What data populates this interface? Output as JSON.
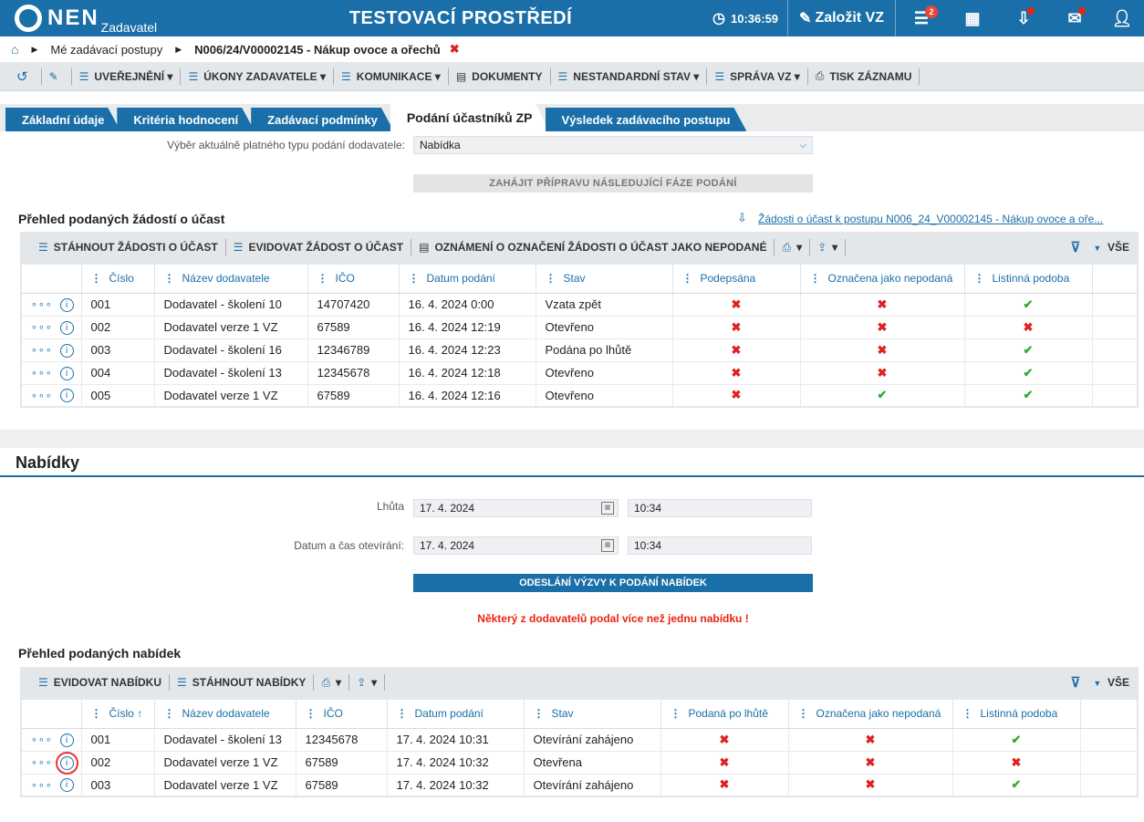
{
  "header": {
    "logo_text": "NEN",
    "logo_sub": "Zadavatel",
    "env_title": "TESTOVACÍ PROSTŘEDÍ",
    "clock": "10:36:59",
    "create_label": "Založit VZ",
    "menu_badge": "2",
    "accent": "#1a6fa8"
  },
  "breadcrumb": {
    "item1": "Mé zadávací postupy",
    "item2": "N006/24/V00002145 - Nákup ovoce a ořechů"
  },
  "toolbar": {
    "uverejneni": "UVEŘEJNĚNÍ",
    "ukony": "ÚKONY ZADAVATELE",
    "komunikace": "KOMUNIKACE",
    "dokumenty": "DOKUMENTY",
    "nestandardni": "NESTANDARDNÍ STAV",
    "sprava": "SPRÁVA VZ",
    "tisk": "TISK ZÁZNAMU"
  },
  "tabs": [
    "Základní údaje",
    "Kritéria hodnocení",
    "Zadávací podmínky",
    "Podání účastníků ZP",
    "Výsledek zadávacího postupu"
  ],
  "section1": {
    "select_label": "Výběr aktuálně platného typu podání dodavatele:",
    "select_value": "Nabídka",
    "next_phase_btn": "ZAHÁJIT PŘÍPRAVU NÁSLEDUJÍCÍ FÁZE PODÁNÍ",
    "grid_title": "Přehled podaných žádostí o účast",
    "download_link": "Žádosti o účast k postupu N006_24_V00002145 - Nákup ovoce a oře...",
    "btn_download": "STÁHNOUT ŽÁDOSTI O ÚČAST",
    "btn_record": "EVIDOVAT ŽÁDOST O ÚČAST",
    "btn_notice": "OZNÁMENÍ O OZNAČENÍ ŽÁDOSTI O ÚČAST JAKO NEPODANÉ",
    "filter_all": "VŠE",
    "columns": [
      "Číslo",
      "Název dodavatele",
      "IČO",
      "Datum podání",
      "Stav",
      "Podepsána",
      "Označena jako nepodaná",
      "Listinná podoba"
    ],
    "rows": [
      {
        "num": "001",
        "name": "Dodavatel - školení 10",
        "ico": "14707420",
        "date": "16. 4. 2024 0:00",
        "state": "Vzata zpět",
        "signed": false,
        "unsubmitted": false,
        "paper": true
      },
      {
        "num": "002",
        "name": "Dodavatel verze 1 VZ",
        "ico": "67589",
        "date": "16. 4. 2024 12:19",
        "state": "Otevřeno",
        "signed": false,
        "unsubmitted": false,
        "paper": false
      },
      {
        "num": "003",
        "name": "Dodavatel - školení 16",
        "ico": "12346789",
        "date": "16. 4. 2024 12:23",
        "state": "Podána po lhůtě",
        "signed": false,
        "unsubmitted": false,
        "paper": true
      },
      {
        "num": "004",
        "name": "Dodavatel - školení 13",
        "ico": "12345678",
        "date": "16. 4. 2024 12:18",
        "state": "Otevřeno",
        "signed": false,
        "unsubmitted": false,
        "paper": true
      },
      {
        "num": "005",
        "name": "Dodavatel verze 1 VZ",
        "ico": "67589",
        "date": "16. 4. 2024 12:16",
        "state": "Otevřeno",
        "signed": false,
        "unsubmitted": true,
        "paper": true
      }
    ]
  },
  "nabidky": {
    "title": "Nabídky",
    "deadline_label": "Lhůta",
    "deadline_date": "17. 4. 2024",
    "deadline_time": "10:34",
    "open_label": "Datum a čas otevírání:",
    "open_date": "17. 4. 2024",
    "open_time": "10:34",
    "send_btn": "ODESLÁNÍ VÝZVY K PODÁNÍ NABÍDEK",
    "warning": "Některý z dodavatelů podal více než jednu nabídku !",
    "grid_title": "Přehled podaných nabídek",
    "btn_record": "EVIDOVAT NABÍDKU",
    "btn_download": "STÁHNOUT NABÍDKY",
    "filter_all": "VŠE",
    "columns": [
      "Číslo",
      "Název dodavatele",
      "IČO",
      "Datum podání",
      "Stav",
      "Podaná po lhůtě",
      "Označena jako nepodaná",
      "Listinná podoba"
    ],
    "rows": [
      {
        "num": "001",
        "name": "Dodavatel - školení 13",
        "ico": "12345678",
        "date": "17. 4. 2024 10:31",
        "state": "Otevírání zahájeno",
        "late": false,
        "unsubmitted": false,
        "paper": true
      },
      {
        "num": "002",
        "name": "Dodavatel verze 1 VZ",
        "ico": "67589",
        "date": "17. 4. 2024 10:32",
        "state": "Otevřena",
        "late": false,
        "unsubmitted": false,
        "paper": false
      },
      {
        "num": "003",
        "name": "Dodavatel verze 1 VZ",
        "ico": "67589",
        "date": "17. 4. 2024 10:32",
        "state": "Otevírání zahájeno",
        "late": false,
        "unsubmitted": false,
        "paper": true
      }
    ]
  }
}
